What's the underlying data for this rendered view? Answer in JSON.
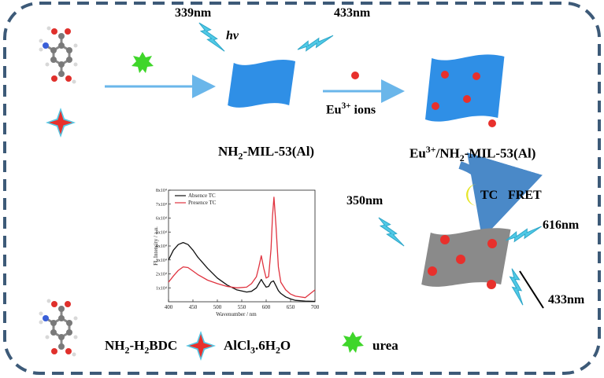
{
  "labels": {
    "nm339": "339nm",
    "hv": "hv",
    "nm433_top": "433nm",
    "eu_ions_prefix": "Eu",
    "eu_ions_sup": "3+",
    "eu_ions_suffix": " ions",
    "mof_left_1": "NH",
    "mof_left_sub": "2",
    "mof_left_2": "-MIL-53(Al)",
    "mof_right_1": "Eu",
    "mof_right_sup": "3+",
    "mof_right_2": "/NH",
    "mof_right_sub": "2",
    "mof_right_3": "-MIL-53(Al)",
    "tc": "TC",
    "fret": "FRET",
    "nm350": "350nm",
    "nm616": "616nm",
    "nm433_bottom": "433nm",
    "legend_ligand_1": "NH",
    "legend_ligand_sub1": "2",
    "legend_ligand_2": "-H",
    "legend_ligand_sub2": "2",
    "legend_ligand_3": "BDC",
    "legend_salt_1": "AlCl",
    "legend_salt_sub": "3",
    "legend_salt_2": ".6H",
    "legend_salt_sub2": "2",
    "legend_salt_3": "O",
    "legend_urea": "urea"
  },
  "colors": {
    "frame": "#3d5a78",
    "sheet_blue": "#2f8fe6",
    "sheet_gray": "#8a8a8a",
    "eu_dot": "#e8302c",
    "bolt": "#4fc9e6",
    "arrow": "#6ab6ea",
    "urea_star": "#3fd62a",
    "salt_star_fill": "#e8302c",
    "salt_star_outline": "#54c7e4",
    "tc_crescent": "#e6e62a",
    "curve_absence": "#111111",
    "curve_presence": "#e0333f"
  },
  "chart_data": {
    "type": "line",
    "xlabel": "Wavenumber / nm",
    "ylabel": "FL Intensity / a.u.",
    "xlim": [
      400,
      700
    ],
    "ylim": [
      0,
      80000
    ],
    "x_ticks": [
      "400",
      "450",
      "500",
      "550",
      "600",
      "650",
      "700"
    ],
    "y_ticks": [
      "1x10⁴",
      "2x10⁴",
      "3x10⁴",
      "4x10⁴",
      "5x10⁴",
      "6x10⁴",
      "7x10⁴",
      "8x10⁴"
    ],
    "legend": "top-left",
    "series": [
      {
        "name": "Absence TC",
        "color": "#111111",
        "x": [
          400,
          410,
          420,
          430,
          440,
          450,
          460,
          480,
          500,
          520,
          540,
          560,
          570,
          580,
          585,
          590,
          595,
          600,
          605,
          610,
          615,
          620,
          625,
          630,
          640,
          650,
          660,
          680,
          700
        ],
        "y": [
          30000,
          37000,
          41000,
          42500,
          41000,
          37000,
          32000,
          24000,
          17000,
          12000,
          8500,
          7000,
          7500,
          10000,
          13000,
          16000,
          13000,
          10500,
          11000,
          14000,
          15000,
          11500,
          8000,
          6000,
          3500,
          2000,
          1000,
          500,
          300
        ]
      },
      {
        "name": "Presence TC",
        "color": "#e0333f",
        "x": [
          400,
          410,
          420,
          430,
          440,
          450,
          460,
          480,
          500,
          520,
          540,
          560,
          570,
          580,
          585,
          590,
          595,
          600,
          605,
          610,
          613,
          616,
          620,
          625,
          630,
          640,
          650,
          660,
          680,
          700
        ],
        "y": [
          14000,
          18500,
          22500,
          25000,
          24500,
          22000,
          19500,
          15500,
          13000,
          11000,
          10000,
          10500,
          13000,
          18000,
          25000,
          33000,
          24000,
          17000,
          18000,
          38000,
          62000,
          75000,
          55000,
          25000,
          14000,
          8500,
          5500,
          4000,
          3000,
          8500
        ]
      }
    ]
  }
}
